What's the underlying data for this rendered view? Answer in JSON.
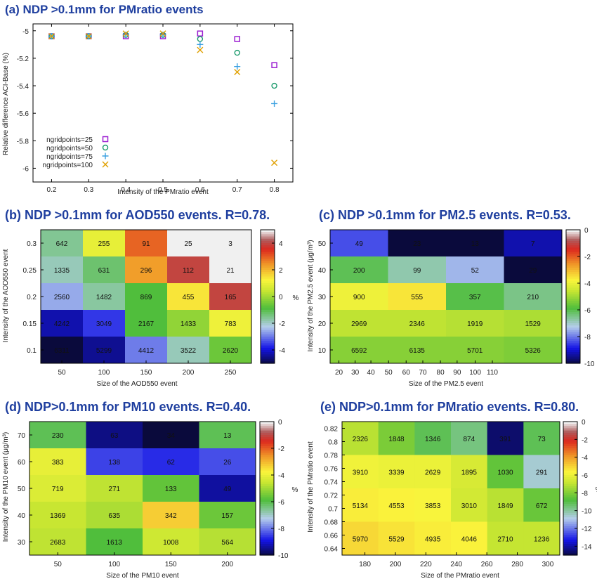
{
  "chart_data": [
    {
      "type": "scatter",
      "title": "(a) NDP >0.1mm for PMratio events",
      "xlabel": "Intensity of the PMratio event",
      "ylabel": "Relative difference ACI-Base (%)",
      "xlim": [
        0.15,
        0.85
      ],
      "ylim": [
        -6.1,
        -4.95
      ],
      "xticks": [
        "0.2",
        "0.3",
        "0.4",
        "0.5",
        "0.6",
        "0.7",
        "0.8"
      ],
      "yticks": [
        "-5",
        "-5.2",
        "-5.4",
        "-5.6",
        "-5.8",
        "-6"
      ],
      "legend_position": "bottom-left",
      "x": [
        0.2,
        0.3,
        0.4,
        0.5,
        0.6,
        0.7,
        0.8
      ],
      "series": [
        {
          "name": "ngridpoints=25",
          "marker": "square",
          "color": "#9b1fd1",
          "values": [
            -5.04,
            -5.04,
            -5.04,
            -5.04,
            -5.02,
            -5.06,
            -5.25
          ]
        },
        {
          "name": "ngridpoints=50",
          "marker": "circle",
          "color": "#1a9a6c",
          "values": [
            -5.04,
            -5.04,
            -5.03,
            -5.03,
            -5.06,
            -5.16,
            -5.4
          ]
        },
        {
          "name": "ngridpoints=75",
          "marker": "plus",
          "color": "#3aa0e0",
          "values": [
            -5.04,
            -5.04,
            -5.03,
            -5.03,
            -5.1,
            -5.26,
            -5.53
          ]
        },
        {
          "name": "ngridpoints=100",
          "marker": "cross",
          "color": "#e0a000",
          "values": [
            -5.04,
            -5.04,
            -5.02,
            -5.02,
            -5.14,
            -5.3,
            -5.96
          ]
        }
      ]
    },
    {
      "type": "heatmap",
      "title": "(b) NDP >0.1mm for AOD550 events. R=0.78.",
      "xlabel": "Size of the AOD550 event",
      "ylabel": "Intensity of the AOD550 event",
      "xticks": [
        "50",
        "100",
        "150",
        "200",
        "250"
      ],
      "yticks": [
        "0.3",
        "0.25",
        "0.2",
        "0.15",
        "0.1"
      ],
      "colorbar": {
        "min": -5,
        "max": 5,
        "label": "%",
        "ticks": [
          "4",
          "2",
          "0",
          "-2",
          "-4"
        ],
        "tickvals": [
          4,
          2,
          0,
          -2,
          -4
        ]
      },
      "rows": [
        {
          "labels": [
            "642",
            "255",
            "91",
            "25",
            "3"
          ],
          "colors": [
            -1.5,
            1.0,
            3.0,
            5.0,
            5.0
          ]
        },
        {
          "labels": [
            "1335",
            "631",
            "296",
            "112",
            "21"
          ],
          "colors": [
            -1.8,
            -1.2,
            2.4,
            4.0,
            5.0
          ]
        },
        {
          "labels": [
            "2560",
            "1482",
            "869",
            "455",
            "165"
          ],
          "colors": [
            -2.5,
            -1.6,
            -0.8,
            1.5,
            4.0
          ]
        },
        {
          "labels": [
            "4242",
            "3049",
            "2167",
            "1433",
            "783"
          ],
          "colors": [
            -4.2,
            -3.5,
            -0.8,
            -0.1,
            1.1
          ]
        },
        {
          "labels": [
            "6311",
            "5299",
            "4412",
            "3522",
            "2620"
          ],
          "colors": [
            -5.0,
            -4.4,
            -2.9,
            -1.8,
            -0.5
          ]
        }
      ]
    },
    {
      "type": "heatmap",
      "title": "(c) NDP >0.1mm for PM2.5 events. R=0.53.",
      "xlabel": "Size of the PM2.5 event",
      "ylabel": "Intensity of the PM2.5 event (μg/m³)",
      "xticks": [
        "20",
        "30",
        "40",
        "50",
        "60",
        "70",
        "80",
        "90",
        "100",
        "110"
      ],
      "yticks": [
        "50",
        "40",
        "30",
        "20",
        "10"
      ],
      "colorbar": {
        "min": -10,
        "max": 0,
        "label": "%",
        "ticks": [
          "0",
          "-2",
          "-4",
          "-6",
          "-8",
          "-10"
        ],
        "tickvals": [
          0,
          -2,
          -4,
          -6,
          -8,
          -10
        ]
      },
      "rows": [
        {
          "labels": [
            "49",
            "23",
            "13",
            "7"
          ],
          "colors": [
            -8.3,
            -10.0,
            -10.0,
            -9.2
          ]
        },
        {
          "labels": [
            "200",
            "99",
            "52",
            "29"
          ],
          "colors": [
            -6.0,
            -6.7,
            -7.4,
            -10.0
          ]
        },
        {
          "labels": [
            "900",
            "555",
            "357",
            "210"
          ],
          "colors": [
            -3.9,
            -3.5,
            -5.9,
            -6.4
          ]
        },
        {
          "labels": [
            "2969",
            "2346",
            "1919",
            "1529"
          ],
          "colors": [
            -4.6,
            -4.6,
            -4.7,
            -4.8
          ]
        },
        {
          "labels": [
            "6592",
            "6135",
            "5701",
            "5326"
          ],
          "colors": [
            -5.2,
            -5.2,
            -5.2,
            -5.3
          ]
        }
      ]
    },
    {
      "type": "heatmap",
      "title": "(d) NDP>0.1mm for PM10 events. R=0.40.",
      "xlabel": "Size of the PM10 event",
      "ylabel": "Intensity of the PM10 event (μg/m³)",
      "xticks": [
        "50",
        "100",
        "150",
        "200"
      ],
      "yticks": [
        "70",
        "60",
        "50",
        "40",
        "30"
      ],
      "colorbar": {
        "min": -10,
        "max": 0,
        "label": "%",
        "ticks": [
          "0",
          "-2",
          "-4",
          "-6",
          "-8",
          "-10"
        ],
        "tickvals": [
          0,
          -2,
          -4,
          -6,
          -8,
          -10
        ]
      },
      "rows": [
        {
          "labels": [
            "230",
            "63",
            "34",
            "13"
          ],
          "colors": [
            -6.0,
            -9.5,
            -10.0,
            -6.0
          ]
        },
        {
          "labels": [
            "383",
            "138",
            "62",
            "26"
          ],
          "colors": [
            -4.0,
            -8.4,
            -8.6,
            -8.3
          ]
        },
        {
          "labels": [
            "719",
            "271",
            "133",
            "49"
          ],
          "colors": [
            -4.2,
            -4.6,
            -5.6,
            -9.3
          ]
        },
        {
          "labels": [
            "1369",
            "635",
            "342",
            "157"
          ],
          "colors": [
            -4.5,
            -4.8,
            -3.2,
            -5.5
          ]
        },
        {
          "labels": [
            "2683",
            "1613",
            "1008",
            "564"
          ],
          "colors": [
            -4.6,
            -5.8,
            -4.4,
            -4.7
          ]
        }
      ]
    },
    {
      "type": "heatmap",
      "title": "(e) NDP>0.1mm for PMratio events. R=0.80.",
      "xlabel": "Size of the PMratio event",
      "ylabel": "Intensity of the PMratio event",
      "xticks": [
        "180",
        "200",
        "220",
        "240",
        "260",
        "280",
        "300"
      ],
      "yticks": [
        "0.82",
        "0.8",
        "0.78",
        "0.76",
        "0.74",
        "0.72",
        "0.7",
        "0.68",
        "0.66",
        "0.64"
      ],
      "colorbar": {
        "min": -15,
        "max": 0,
        "label": "%",
        "ticks": [
          "0",
          "-2",
          "-4",
          "-6",
          "-8",
          "-10",
          "-12",
          "-14"
        ],
        "tickvals": [
          0,
          -2,
          -4,
          -6,
          -8,
          -10,
          -12,
          -14
        ]
      },
      "rows": [
        {
          "labels": [
            "2326",
            "1848",
            "1346",
            "874",
            "391",
            "73"
          ],
          "colors": [
            -7.0,
            -8.0,
            -9.0,
            -9.5,
            -14.5,
            -9.0
          ]
        },
        {
          "labels": [
            "3910",
            "3339",
            "2629",
            "1895",
            "1030",
            "291"
          ],
          "colors": [
            -5.8,
            -5.9,
            -5.9,
            -6.4,
            -8.4,
            -10.5
          ]
        },
        {
          "labels": [
            "5134",
            "4553",
            "3853",
            "3010",
            "1849",
            "672"
          ],
          "colors": [
            -5.4,
            -5.5,
            -5.6,
            -6.5,
            -7.0,
            -8.3
          ]
        },
        {
          "labels": [
            "5970",
            "5529",
            "4935",
            "4046",
            "2710",
            "1236"
          ],
          "colors": [
            -5.0,
            -5.2,
            -5.4,
            -5.5,
            -6.8,
            -6.8
          ]
        }
      ]
    }
  ]
}
